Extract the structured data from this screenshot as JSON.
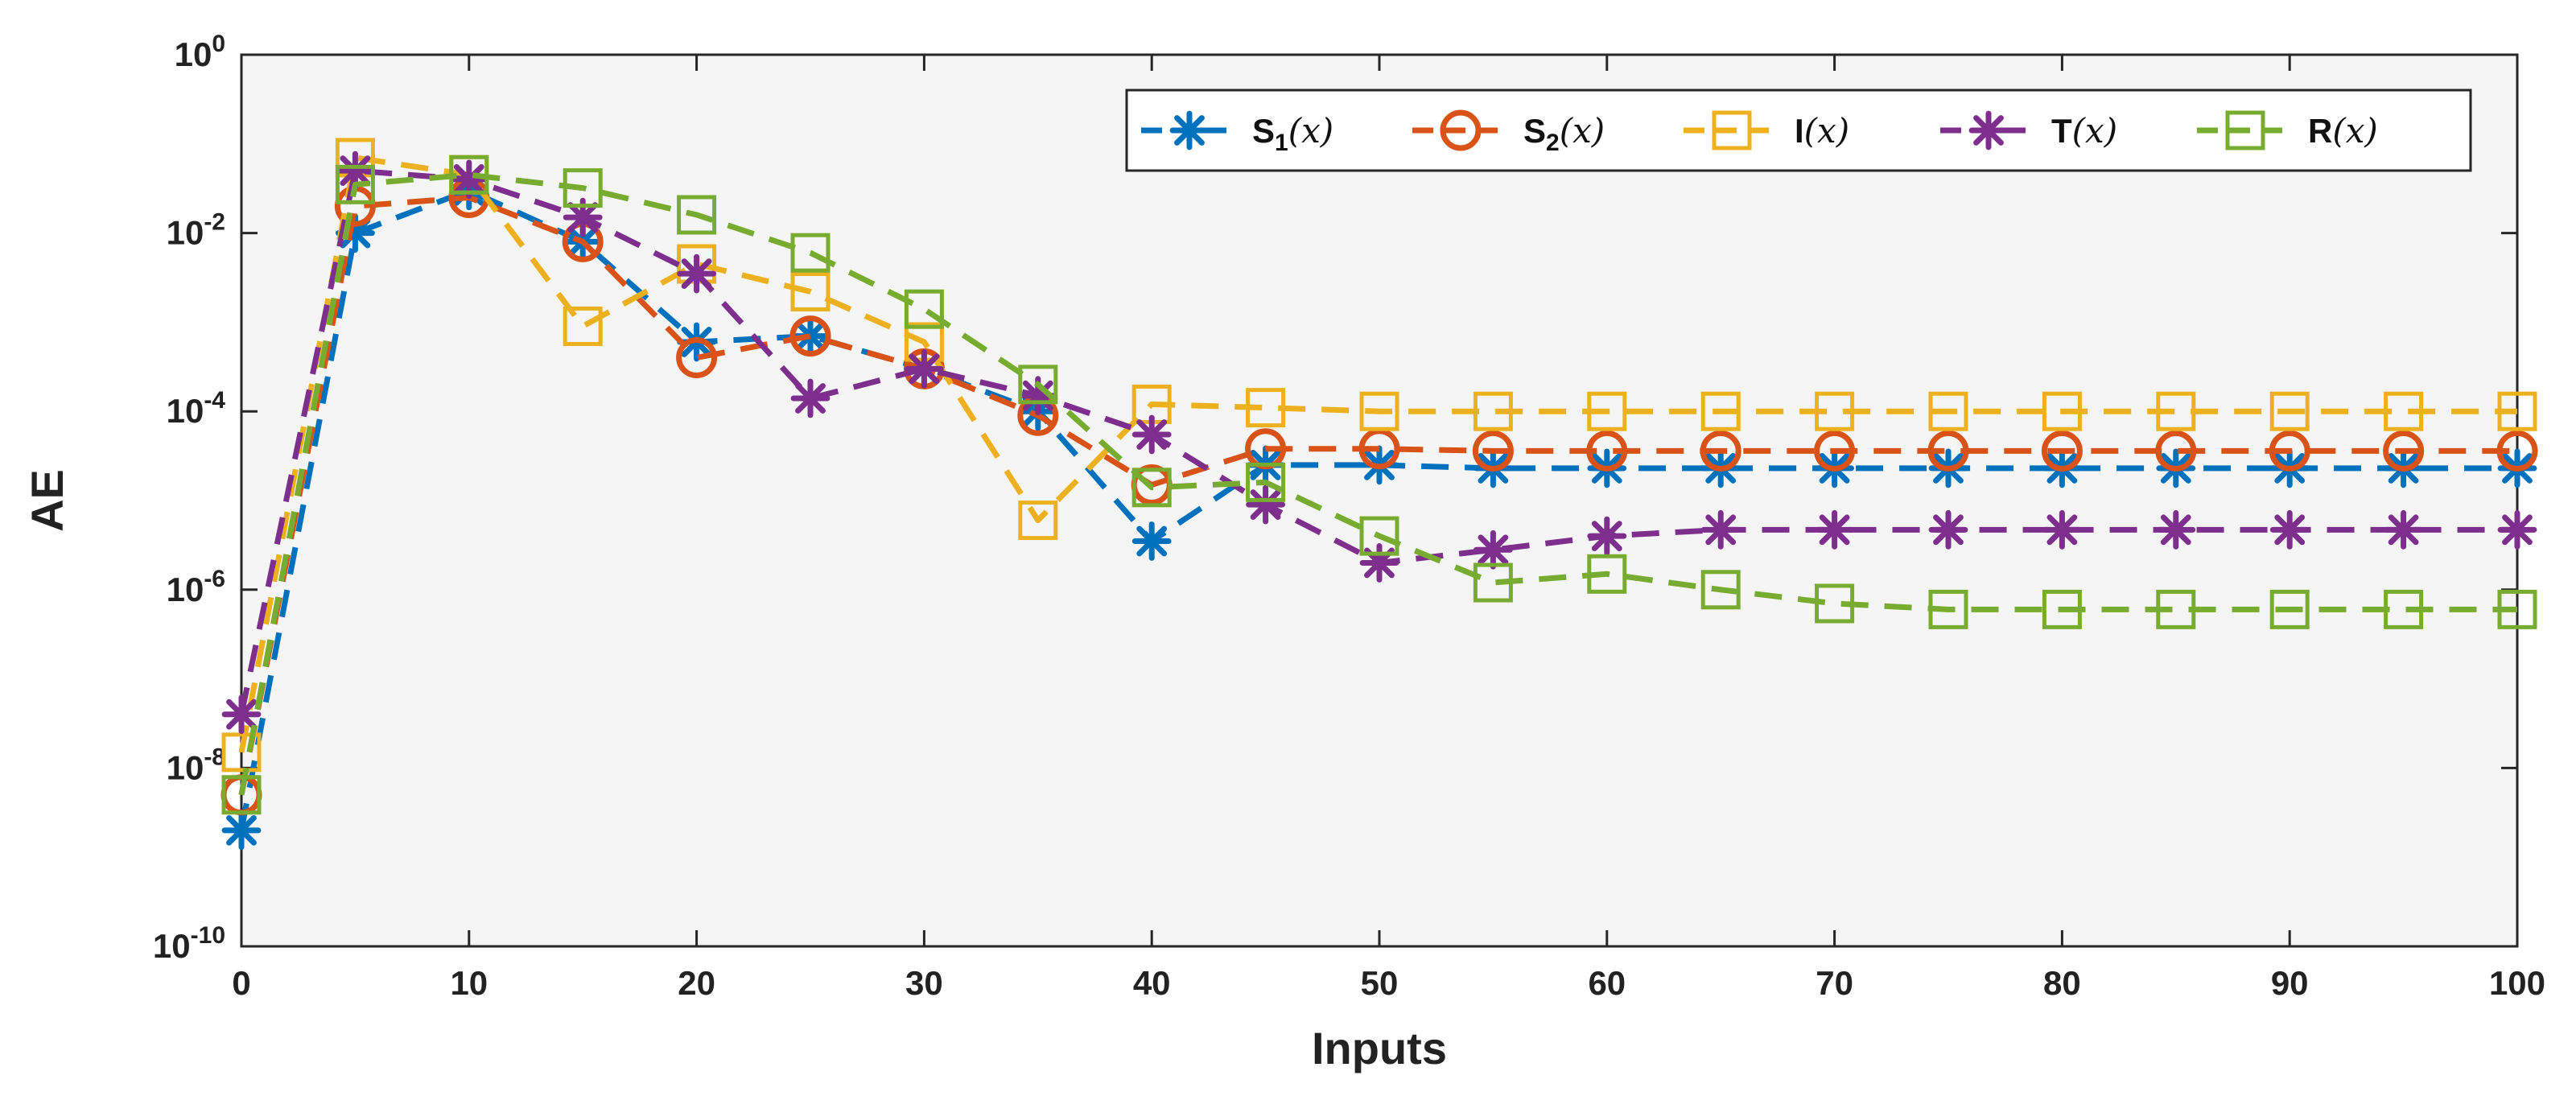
{
  "chart_data": {
    "type": "line",
    "title": "",
    "xlabel": "Inputs",
    "ylabel": "AE",
    "yscale": "log",
    "xlim": [
      0,
      100
    ],
    "ylim_exp": [
      -10,
      0
    ],
    "x_ticks": [
      0,
      10,
      20,
      30,
      40,
      50,
      60,
      70,
      80,
      90,
      100
    ],
    "y_ticks": [
      {
        "base": "10",
        "exp": "0",
        "exponent": 0
      },
      {
        "base": "10",
        "exp": "-2",
        "exponent": -2
      },
      {
        "base": "10",
        "exp": "-4",
        "exponent": -4
      },
      {
        "base": "10",
        "exp": "-6",
        "exponent": -6
      },
      {
        "base": "10",
        "exp": "-8",
        "exponent": -8
      },
      {
        "base": "10",
        "exp": "-10",
        "exponent": -10
      }
    ],
    "legend_position": "top-right",
    "x": [
      0,
      5,
      10,
      15,
      20,
      25,
      30,
      35,
      40,
      45,
      50,
      55,
      60,
      65,
      70,
      75,
      80,
      85,
      90,
      95,
      100
    ],
    "series": [
      {
        "name": "S₁(x)",
        "color": "#0072BD",
        "marker": "asterisk",
        "values": [
          2e-09,
          0.01,
          0.03,
          0.008,
          0.0006,
          0.0007,
          0.0003,
          0.0001,
          3.5e-06,
          2.5e-05,
          2.5e-05,
          2.3e-05,
          2.3e-05,
          2.3e-05,
          2.3e-05,
          2.3e-05,
          2.3e-05,
          2.3e-05,
          2.3e-05,
          2.3e-05,
          2.3e-05
        ]
      },
      {
        "name": "S₂(x)",
        "color": "#D95319",
        "marker": "circle",
        "values": [
          5e-09,
          0.02,
          0.025,
          0.008,
          0.0004,
          0.0007,
          0.0003,
          9e-05,
          1.5e-05,
          3.8e-05,
          3.8e-05,
          3.6e-05,
          3.6e-05,
          3.6e-05,
          3.6e-05,
          3.6e-05,
          3.6e-05,
          3.6e-05,
          3.6e-05,
          3.6e-05,
          3.6e-05
        ]
      },
      {
        "name": "I(x)",
        "color": "#EDB120",
        "marker": "square",
        "values": [
          1.5e-08,
          0.07,
          0.045,
          0.0009,
          0.0045,
          0.0022,
          0.0006,
          6e-06,
          0.00012,
          0.00011,
          0.0001,
          0.0001,
          0.0001,
          0.0001,
          0.0001,
          0.0001,
          0.0001,
          0.0001,
          0.0001,
          0.0001,
          0.0001
        ]
      },
      {
        "name": "T(x)",
        "color": "#7E2F8E",
        "marker": "asterisk",
        "values": [
          4e-08,
          0.05,
          0.04,
          0.015,
          0.0035,
          0.00014,
          0.0003,
          0.00015,
          5.5e-05,
          9e-06,
          2e-06,
          2.8e-06,
          4e-06,
          4.7e-06,
          4.7e-06,
          4.7e-06,
          4.7e-06,
          4.7e-06,
          4.7e-06,
          4.7e-06,
          4.7e-06
        ]
      },
      {
        "name": "R(x)",
        "color": "#77AC30",
        "marker": "square",
        "values": [
          5e-09,
          0.035,
          0.045,
          0.032,
          0.016,
          0.006,
          0.0014,
          0.0002,
          1.4e-05,
          1.6e-05,
          4e-06,
          1.2e-06,
          1.5e-06,
          1e-06,
          7e-07,
          6e-07,
          6e-07,
          6e-07,
          6e-07,
          6e-07,
          6e-07
        ]
      }
    ],
    "legend": [
      {
        "letter": "S",
        "sub": "1",
        "arg": "(x)"
      },
      {
        "letter": "S",
        "sub": "2",
        "arg": "(x)"
      },
      {
        "letter": "I",
        "sub": "",
        "arg": "(x)"
      },
      {
        "letter": "T",
        "sub": "",
        "arg": "(x)"
      },
      {
        "letter": "R",
        "sub": "",
        "arg": "(x)"
      }
    ]
  }
}
